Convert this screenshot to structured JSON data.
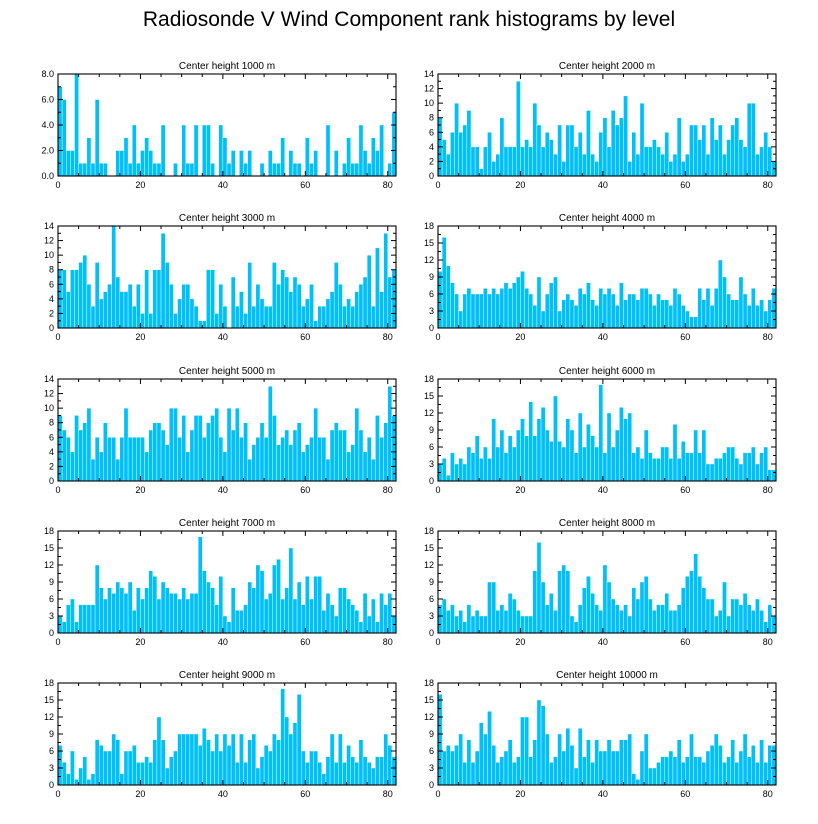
{
  "figure": {
    "title": "Radiosonde V Wind Component rank histograms by level",
    "bar_color": "#00c0f8"
  },
  "chart_data": [
    {
      "type": "bar",
      "title": "Center height 1000 m",
      "xlim": [
        0,
        82
      ],
      "ylim": [
        0,
        8
      ],
      "xticks": [
        0,
        20,
        40,
        60,
        80
      ],
      "yticks": [
        0,
        2,
        4,
        6,
        8
      ],
      "ytick_labels": [
        "0.0",
        "2.0",
        "4.0",
        "6.0",
        "8.0"
      ],
      "values": [
        7,
        6,
        2,
        2,
        8,
        1,
        1,
        3,
        1,
        6,
        1,
        1,
        0,
        0,
        2,
        2,
        3,
        1,
        4,
        1,
        2,
        3,
        2,
        1,
        1,
        4,
        0,
        0,
        1,
        0,
        4,
        1,
        1,
        4,
        0,
        4,
        4,
        1,
        0,
        4,
        3,
        1,
        2,
        0,
        2,
        1,
        2,
        0,
        0,
        1,
        0,
        2,
        1,
        1,
        3,
        0,
        2,
        1,
        1,
        0,
        3,
        1,
        2,
        0,
        0,
        4,
        0,
        2,
        0,
        1,
        3,
        1,
        1,
        4,
        2,
        1,
        3,
        2,
        4,
        0,
        1,
        5
      ]
    },
    {
      "type": "bar",
      "title": "Center height 2000 m",
      "xlim": [
        0,
        82
      ],
      "ylim": [
        0,
        14
      ],
      "xticks": [
        0,
        20,
        40,
        60,
        80
      ],
      "yticks": [
        0,
        2,
        4,
        6,
        8,
        10,
        12,
        14
      ],
      "ytick_labels": [
        "0",
        "2",
        "4",
        "6",
        "8",
        "10",
        "12",
        "14"
      ],
      "values": [
        8,
        5,
        3,
        6,
        10,
        6,
        7,
        9,
        4,
        4,
        1,
        4,
        6,
        2,
        3,
        8,
        4,
        4,
        4,
        13,
        4,
        5,
        4,
        10,
        7,
        4,
        6,
        5,
        3,
        7,
        2,
        7,
        7,
        4,
        6,
        3,
        9,
        3,
        2,
        6,
        8,
        4,
        9,
        7,
        8,
        11,
        2,
        6,
        3,
        10,
        4,
        4,
        5,
        4,
        3,
        6,
        2,
        3,
        8,
        2,
        3,
        7,
        7,
        5,
        7,
        3,
        8,
        5,
        7,
        3,
        5,
        7,
        8,
        5,
        4,
        10,
        10,
        3,
        4,
        6,
        4,
        2
      ]
    },
    {
      "type": "bar",
      "title": "Center height 3000 m",
      "xlim": [
        0,
        82
      ],
      "ylim": [
        0,
        14
      ],
      "xticks": [
        0,
        20,
        40,
        60,
        80
      ],
      "yticks": [
        0,
        2,
        4,
        6,
        8,
        10,
        12,
        14
      ],
      "ytick_labels": [
        "0",
        "2",
        "4",
        "6",
        "8",
        "10",
        "12",
        "14"
      ],
      "values": [
        8,
        8,
        5,
        8,
        8,
        9,
        10,
        6,
        3,
        9,
        4,
        5,
        6,
        14,
        7,
        5,
        5,
        6,
        3,
        6,
        2,
        8,
        2,
        8,
        8,
        13,
        9,
        6,
        2,
        4,
        6,
        6,
        4,
        3,
        1,
        1,
        8,
        8,
        2,
        6,
        3,
        0,
        7,
        3,
        5,
        2,
        9,
        3,
        6,
        4,
        3,
        3,
        9,
        6,
        8,
        7,
        5,
        7,
        6,
        3,
        4,
        6,
        1,
        3,
        3,
        4,
        5,
        9,
        6,
        3,
        4,
        3,
        5,
        6,
        7,
        10,
        3,
        11,
        5,
        13,
        7,
        8
      ]
    },
    {
      "type": "bar",
      "title": "Center height 4000 m",
      "xlim": [
        0,
        82
      ],
      "ylim": [
        0,
        18
      ],
      "xticks": [
        0,
        20,
        40,
        60,
        80
      ],
      "yticks": [
        0,
        3,
        6,
        9,
        12,
        15,
        18
      ],
      "ytick_labels": [
        "0",
        "3",
        "6",
        "9",
        "12",
        "15",
        "18"
      ],
      "values": [
        10,
        16,
        11,
        8,
        6,
        3,
        6,
        7,
        6,
        6,
        6,
        7,
        6,
        7,
        6,
        7,
        8,
        7,
        8,
        9,
        10,
        7,
        6,
        4,
        9,
        3,
        6,
        8,
        9,
        3,
        5,
        6,
        5,
        4,
        7,
        6,
        8,
        5,
        4,
        7,
        6,
        7,
        6,
        4,
        8,
        5,
        6,
        6,
        5,
        7,
        7,
        6,
        4,
        6,
        5,
        5,
        4,
        7,
        6,
        4,
        3,
        2,
        2,
        7,
        5,
        7,
        4,
        7,
        12,
        9,
        6,
        5,
        5,
        9,
        6,
        4,
        7,
        4,
        5,
        3,
        5,
        7
      ]
    },
    {
      "type": "bar",
      "title": "Center height 5000 m",
      "xlim": [
        0,
        82
      ],
      "ylim": [
        0,
        14
      ],
      "xticks": [
        0,
        20,
        40,
        60,
        80
      ],
      "yticks": [
        0,
        2,
        4,
        6,
        8,
        10,
        12,
        14
      ],
      "ytick_labels": [
        "0",
        "2",
        "4",
        "6",
        "8",
        "10",
        "12",
        "14"
      ],
      "values": [
        9,
        7,
        6,
        4,
        9,
        7,
        8,
        10,
        3,
        6,
        4,
        8,
        6,
        6,
        3,
        6,
        10,
        6,
        6,
        6,
        6,
        4,
        7,
        8,
        8,
        7,
        5,
        10,
        10,
        6,
        9,
        4,
        7,
        9,
        9,
        6,
        8,
        9,
        10,
        6,
        4,
        10,
        7,
        10,
        6,
        8,
        3,
        5,
        6,
        8,
        6,
        13,
        9,
        5,
        6,
        7,
        5,
        7,
        8,
        4,
        5,
        6,
        10,
        6,
        6,
        3,
        7,
        8,
        7,
        7,
        4,
        5,
        10,
        7,
        4,
        6,
        3,
        9,
        6,
        8,
        13,
        9
      ]
    },
    {
      "type": "bar",
      "title": "Center height 6000 m",
      "xlim": [
        0,
        82
      ],
      "ylim": [
        0,
        18
      ],
      "xticks": [
        0,
        20,
        40,
        60,
        80
      ],
      "yticks": [
        0,
        3,
        6,
        9,
        12,
        15,
        18
      ],
      "ytick_labels": [
        "0",
        "3",
        "6",
        "9",
        "12",
        "15",
        "18"
      ],
      "values": [
        3,
        4,
        1,
        5,
        3,
        4,
        3,
        6,
        5,
        8,
        4,
        6,
        4,
        11,
        6,
        9,
        5,
        8,
        6,
        9,
        11,
        8,
        14,
        8,
        11,
        13,
        9,
        7,
        15,
        7,
        6,
        11,
        9,
        5,
        12,
        6,
        10,
        8,
        6,
        17,
        5,
        12,
        6,
        9,
        13,
        11,
        12,
        5,
        6,
        4,
        9,
        5,
        4,
        4,
        6,
        6,
        4,
        10,
        4,
        7,
        5,
        5,
        9,
        5,
        9,
        3,
        3,
        4,
        4,
        5,
        6,
        6,
        4,
        3,
        5,
        5,
        6,
        3,
        5,
        6,
        2,
        2
      ]
    },
    {
      "type": "bar",
      "title": "Center height 7000 m",
      "xlim": [
        0,
        82
      ],
      "ylim": [
        0,
        18
      ],
      "xticks": [
        0,
        20,
        40,
        60,
        80
      ],
      "yticks": [
        0,
        3,
        6,
        9,
        12,
        15,
        18
      ],
      "ytick_labels": [
        "0",
        "3",
        "6",
        "9",
        "12",
        "15",
        "18"
      ],
      "values": [
        3,
        2,
        5,
        6,
        2,
        5,
        5,
        5,
        5,
        12,
        8,
        6,
        8,
        7,
        9,
        8,
        7,
        9,
        4,
        8,
        6,
        8,
        11,
        10,
        6,
        9,
        8,
        7,
        7,
        6,
        8,
        6,
        7,
        7,
        17,
        11,
        9,
        8,
        5,
        10,
        3,
        2,
        8,
        4,
        4,
        5,
        9,
        8,
        12,
        11,
        6,
        7,
        12,
        13,
        6,
        8,
        15,
        6,
        9,
        5,
        10,
        6,
        10,
        10,
        4,
        7,
        5,
        3,
        8,
        8,
        6,
        5,
        4,
        2,
        7,
        3,
        6,
        2,
        7,
        5,
        7,
        3
      ]
    },
    {
      "type": "bar",
      "title": "Center height 8000 m",
      "xlim": [
        0,
        82
      ],
      "ylim": [
        0,
        18
      ],
      "xticks": [
        0,
        20,
        40,
        60,
        80
      ],
      "yticks": [
        0,
        3,
        6,
        9,
        12,
        15,
        18
      ],
      "ytick_labels": [
        "0",
        "3",
        "6",
        "9",
        "12",
        "15",
        "18"
      ],
      "values": [
        5,
        6,
        4,
        5,
        3,
        4,
        2,
        5,
        3,
        4,
        3,
        3,
        9,
        9,
        4,
        5,
        4,
        7,
        6,
        4,
        3,
        3,
        3,
        11,
        16,
        9,
        5,
        7,
        4,
        11,
        12,
        11,
        3,
        2,
        5,
        8,
        10,
        7,
        5,
        4,
        12,
        9,
        6,
        5,
        4,
        5,
        3,
        8,
        6,
        9,
        10,
        6,
        4,
        5,
        5,
        7,
        4,
        4,
        5,
        8,
        10,
        11,
        14,
        10,
        8,
        6,
        6,
        3,
        4,
        9,
        3,
        6,
        6,
        5,
        7,
        5,
        4,
        6,
        4,
        2,
        5,
        3
      ]
    },
    {
      "type": "bar",
      "title": "Center height 9000 m",
      "xlim": [
        0,
        82
      ],
      "ylim": [
        0,
        18
      ],
      "xticks": [
        0,
        20,
        40,
        60,
        80
      ],
      "yticks": [
        0,
        3,
        6,
        9,
        12,
        15,
        18
      ],
      "ytick_labels": [
        "0",
        "3",
        "6",
        "9",
        "12",
        "15",
        "18"
      ],
      "values": [
        7,
        4,
        2,
        6,
        1,
        3,
        5,
        1,
        2,
        8,
        7,
        6,
        6,
        9,
        8,
        2,
        6,
        6,
        7,
        4,
        4,
        5,
        4,
        8,
        12,
        8,
        3,
        5,
        6,
        9,
        9,
        9,
        9,
        9,
        7,
        10,
        8,
        6,
        9,
        6,
        9,
        7,
        9,
        4,
        9,
        4,
        8,
        9,
        3,
        5,
        7,
        6,
        9,
        8,
        17,
        12,
        9,
        11,
        16,
        6,
        4,
        6,
        6,
        4,
        2,
        5,
        9,
        4,
        9,
        4,
        7,
        5,
        4,
        8,
        5,
        4,
        3,
        5,
        5,
        9,
        7,
        5
      ]
    },
    {
      "type": "bar",
      "title": "Center height 10000 m",
      "xlim": [
        0,
        82
      ],
      "ylim": [
        0,
        18
      ],
      "xticks": [
        0,
        20,
        40,
        60,
        80
      ],
      "yticks": [
        0,
        3,
        6,
        9,
        12,
        15,
        18
      ],
      "ytick_labels": [
        "0",
        "3",
        "6",
        "9",
        "12",
        "15",
        "18"
      ],
      "values": [
        16,
        6,
        7,
        6,
        7,
        9,
        4,
        8,
        4,
        6,
        11,
        9,
        13,
        7,
        4,
        5,
        6,
        8,
        4,
        5,
        12,
        12,
        5,
        8,
        15,
        14,
        9,
        4,
        5,
        9,
        6,
        10,
        7,
        3,
        10,
        5,
        8,
        4,
        8,
        6,
        6,
        8,
        6,
        6,
        8,
        8,
        9,
        2,
        1,
        6,
        9,
        3,
        3,
        4,
        5,
        5,
        6,
        5,
        8,
        4,
        5,
        9,
        5,
        5,
        4,
        6,
        7,
        9,
        7,
        4,
        5,
        8,
        4,
        6,
        9,
        5,
        7,
        4,
        8,
        4,
        7,
        7
      ]
    }
  ]
}
